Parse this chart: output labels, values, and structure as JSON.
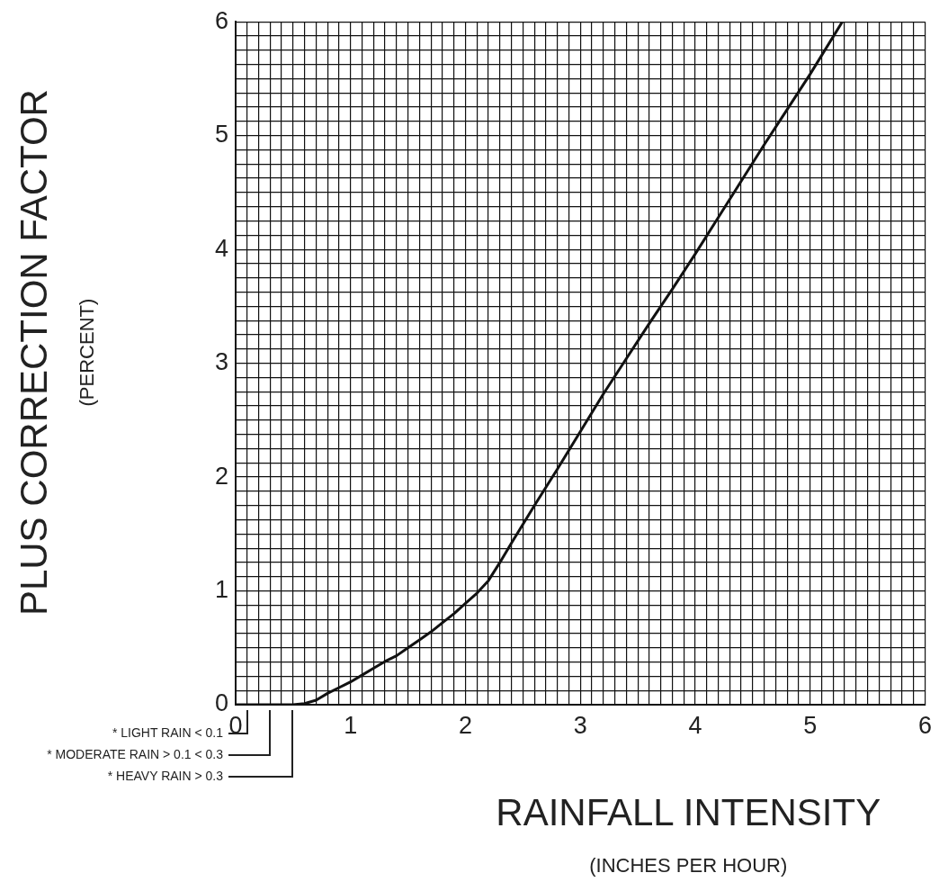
{
  "chart_data": {
    "type": "line",
    "xlabel": "RAINFALL INTENSITY\n(INCHES PER HOUR)",
    "ylabel": "PLUS CORRECTION FACTOR\n(PERCENT)",
    "x": [
      0,
      0.5,
      0.6,
      0.7,
      0.8,
      0.9,
      1.0,
      1.1,
      1.2,
      1.3,
      1.4,
      1.5,
      1.6,
      1.7,
      1.8,
      1.9,
      2.0,
      2.1,
      2.2,
      2.3,
      2.4,
      2.6,
      2.8,
      3.0,
      3.2,
      3.4,
      3.6,
      3.8,
      4.0,
      4.2,
      4.4,
      4.6,
      4.8,
      5.0,
      5.28
    ],
    "series": [
      {
        "color": "#111111",
        "values": [
          0,
          0,
          0.01,
          0.04,
          0.1,
          0.15,
          0.2,
          0.26,
          0.32,
          0.38,
          0.43,
          0.5,
          0.57,
          0.64,
          0.72,
          0.8,
          0.89,
          0.98,
          1.09,
          1.25,
          1.42,
          1.75,
          2.07,
          2.4,
          2.73,
          3.04,
          3.35,
          3.65,
          3.96,
          4.28,
          4.6,
          4.92,
          5.23,
          5.54,
          6
        ]
      }
    ],
    "xlim": [
      0,
      6
    ],
    "ylim": [
      0,
      6
    ],
    "xticks": [
      0,
      {
        "value": 0.1,
        "label": null
      },
      {
        "value": 0.2,
        "label": null
      },
      {
        "value": 0.3,
        "label": null
      },
      {
        "value": 0.4,
        "label": null
      },
      {
        "value": 0.5,
        "label": null
      },
      {
        "value": 0.6,
        "label": null
      },
      {
        "value": 0.7,
        "label": null
      },
      {
        "value": 0.8,
        "label": null
      },
      {
        "value": 0.9,
        "label": null
      },
      1,
      {
        "value": 1.1,
        "label": null
      },
      {
        "value": 1.2,
        "label": null
      },
      {
        "value": 1.3,
        "label": null
      },
      {
        "value": 1.4,
        "label": null
      },
      {
        "value": 1.5,
        "label": null
      },
      {
        "value": 1.6,
        "label": null
      },
      {
        "value": 1.7,
        "label": null
      },
      {
        "value": 1.8,
        "label": null
      },
      {
        "value": 1.9,
        "label": null
      },
      2,
      {
        "value": 2.1,
        "label": null
      },
      {
        "value": 2.2,
        "label": null
      },
      {
        "value": 2.3,
        "label": null
      },
      {
        "value": 2.4,
        "label": null
      },
      {
        "value": 2.5,
        "label": null
      },
      {
        "value": 2.6,
        "label": null
      },
      {
        "value": 2.7,
        "label": null
      },
      {
        "value": 2.8,
        "label": null
      },
      {
        "value": 2.9,
        "label": null
      },
      3,
      {
        "value": 3.1,
        "label": null
      },
      {
        "value": 3.2,
        "label": null
      },
      {
        "value": 3.3,
        "label": null
      },
      {
        "value": 3.4,
        "label": null
      },
      {
        "value": 3.5,
        "label": null
      },
      {
        "value": 3.6,
        "label": null
      },
      {
        "value": 3.7,
        "label": null
      },
      {
        "value": 3.8,
        "label": null
      },
      {
        "value": 3.9,
        "label": null
      },
      4,
      {
        "value": 4.1,
        "label": null
      },
      {
        "value": 4.2,
        "label": null
      },
      {
        "value": 4.3,
        "label": null
      },
      {
        "value": 4.4,
        "label": null
      },
      {
        "value": 4.5,
        "label": null
      },
      {
        "value": 4.6,
        "label": null
      },
      {
        "value": 4.7,
        "label": null
      },
      {
        "value": 4.8,
        "label": null
      },
      {
        "value": 4.9,
        "label": null
      },
      5,
      {
        "value": 5.1,
        "label": null
      },
      {
        "value": 5.2,
        "label": null
      },
      {
        "value": 5.3,
        "label": null
      },
      {
        "value": 5.4,
        "label": null
      },
      {
        "value": 5.5,
        "label": null
      },
      {
        "value": 5.6,
        "label": null
      },
      {
        "value": 5.7,
        "label": null
      },
      {
        "value": 5.8,
        "label": null
      },
      {
        "value": 5.9,
        "label": null
      },
      6
    ],
    "yticks": [
      0,
      {
        "value": 0.125,
        "label": null
      },
      {
        "value": 0.25,
        "label": null
      },
      {
        "value": 0.375,
        "label": null
      },
      {
        "value": 0.5,
        "label": null
      },
      {
        "value": 0.625,
        "label": null
      },
      {
        "value": 0.75,
        "label": null
      },
      {
        "value": 0.875,
        "label": null
      },
      1,
      {
        "value": 1.125,
        "label": null
      },
      {
        "value": 1.25,
        "label": null
      },
      {
        "value": 1.375,
        "label": null
      },
      {
        "value": 1.5,
        "label": null
      },
      {
        "value": 1.625,
        "label": null
      },
      {
        "value": 1.75,
        "label": null
      },
      {
        "value": 1.875,
        "label": null
      },
      2,
      {
        "value": 2.125,
        "label": null
      },
      {
        "value": 2.25,
        "label": null
      },
      {
        "value": 2.375,
        "label": null
      },
      {
        "value": 2.5,
        "label": null
      },
      {
        "value": 2.625,
        "label": null
      },
      {
        "value": 2.75,
        "label": null
      },
      {
        "value": 2.875,
        "label": null
      },
      3,
      {
        "value": 3.125,
        "label": null
      },
      {
        "value": 3.25,
        "label": null
      },
      {
        "value": 3.375,
        "label": null
      },
      {
        "value": 3.5,
        "label": null
      },
      {
        "value": 3.625,
        "label": null
      },
      {
        "value": 3.75,
        "label": null
      },
      {
        "value": 3.875,
        "label": null
      },
      4,
      {
        "value": 4.125,
        "label": null
      },
      {
        "value": 4.25,
        "label": null
      },
      {
        "value": 4.375,
        "label": null
      },
      {
        "value": 4.5,
        "label": null
      },
      {
        "value": 4.625,
        "label": null
      },
      {
        "value": 4.75,
        "label": null
      },
      {
        "value": 4.875,
        "label": null
      },
      5,
      {
        "value": 5.125,
        "label": null
      },
      {
        "value": 5.25,
        "label": null
      },
      {
        "value": 5.375,
        "label": null
      },
      {
        "value": 5.5,
        "label": null
      },
      {
        "value": 5.625,
        "label": null
      },
      {
        "value": 5.75,
        "label": null
      },
      {
        "value": 5.875,
        "label": null
      },
      6
    ],
    "grid": true,
    "marker": "none",
    "line_style": "solid",
    "annotations": [
      "* LIGHT RAIN < 0.1",
      "* MODERATE RAIN > 0.1 < 0.3",
      "* HEAVY RAIN > 0.3"
    ]
  }
}
